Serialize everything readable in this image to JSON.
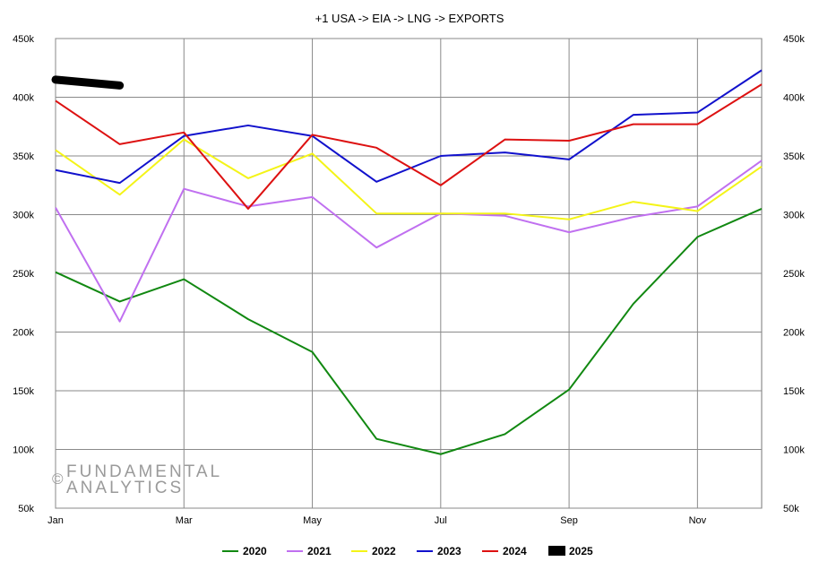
{
  "watermark": {
    "symbol": "©",
    "line1": "FUNDAMENTAL",
    "line2": "ANALYTICS"
  },
  "chart_data": {
    "type": "line",
    "title": "+1 USA -> EIA -> LNG -> EXPORTS",
    "xlabel": "",
    "ylabel": "",
    "x_tick_labels": [
      "Jan",
      "Mar",
      "May",
      "Jul",
      "Sep",
      "Nov"
    ],
    "y_tick_labels": [
      "50k",
      "100k",
      "150k",
      "200k",
      "250k",
      "300k",
      "350k",
      "400k",
      "450k"
    ],
    "y_ticks": [
      50000,
      100000,
      150000,
      200000,
      250000,
      300000,
      350000,
      400000,
      450000
    ],
    "ylim": [
      50000,
      450000
    ],
    "months": [
      1,
      2,
      3,
      4,
      5,
      6,
      7,
      8,
      9,
      10,
      11,
      12
    ],
    "grid": true,
    "legend_position": "bottom",
    "series": [
      {
        "name": "2020",
        "color": "#118811",
        "values": [
          251000,
          226000,
          245000,
          211000,
          183000,
          109000,
          96000,
          113000,
          151000,
          224000,
          281000,
          305000
        ]
      },
      {
        "name": "2021",
        "color": "#c070f0",
        "values": [
          306000,
          209000,
          322000,
          307000,
          315000,
          272000,
          301000,
          299000,
          285000,
          298000,
          307000,
          346000
        ]
      },
      {
        "name": "2022",
        "color": "#f4f418",
        "values": [
          355000,
          317000,
          364000,
          331000,
          352000,
          301000,
          301000,
          301000,
          296000,
          311000,
          303000,
          341000
        ]
      },
      {
        "name": "2023",
        "color": "#1111cc",
        "values": [
          338000,
          327000,
          367000,
          376000,
          367000,
          328000,
          350000,
          353000,
          347000,
          385000,
          387000,
          423000
        ]
      },
      {
        "name": "2024",
        "color": "#dd1111",
        "values": [
          397000,
          360000,
          370000,
          305000,
          368000,
          357000,
          325000,
          364000,
          363000,
          377000,
          377000,
          411000
        ]
      },
      {
        "name": "2025",
        "color": "#000000",
        "values": [
          415000,
          410000
        ]
      }
    ]
  }
}
